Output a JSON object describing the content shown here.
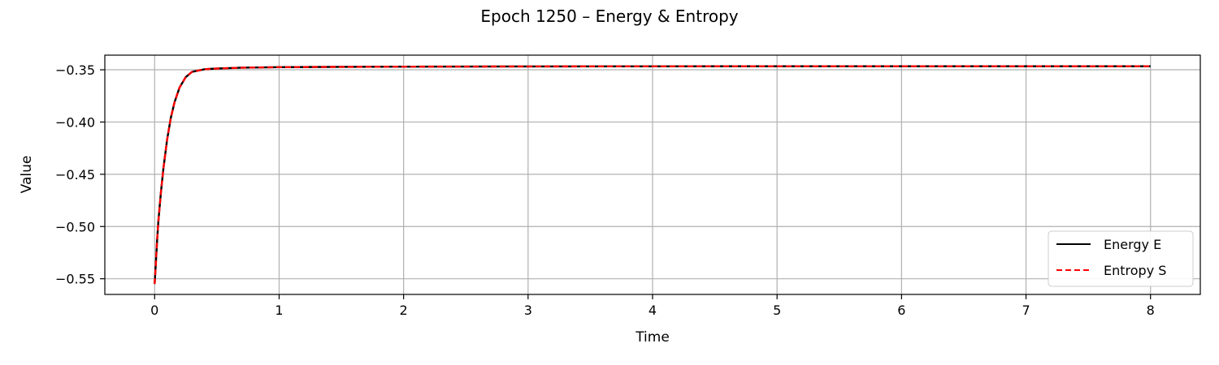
{
  "chart_data": {
    "type": "line",
    "title": "Epoch 1250 – Energy & Entropy",
    "xlabel": "Time",
    "ylabel": "Value",
    "xlim": [
      -0.4,
      8.4
    ],
    "ylim": [
      -0.565,
      -0.336
    ],
    "xticks": [
      0,
      1,
      2,
      3,
      4,
      5,
      6,
      7,
      8
    ],
    "yticks": [
      -0.55,
      -0.5,
      -0.45,
      -0.4,
      -0.35
    ],
    "xtick_labels": [
      "0",
      "1",
      "2",
      "3",
      "4",
      "5",
      "6",
      "7",
      "8"
    ],
    "ytick_labels": [
      "−0.55",
      "−0.50",
      "−0.45",
      "−0.40",
      "−0.35"
    ],
    "grid": true,
    "legend": "lower-right",
    "series": [
      {
        "name": "Energy E",
        "color": "#000000",
        "style": "solid",
        "x": [
          0,
          0.01,
          0.02,
          0.03,
          0.05,
          0.07,
          0.1,
          0.13,
          0.16,
          0.2,
          0.25,
          0.3,
          0.4,
          0.5,
          0.7,
          1.0,
          1.5,
          2.0,
          3.0,
          4.0,
          5.0,
          6.0,
          7.0,
          8.0
        ],
        "values": [
          -0.555,
          -0.535,
          -0.513,
          -0.495,
          -0.468,
          -0.445,
          -0.417,
          -0.396,
          -0.381,
          -0.367,
          -0.357,
          -0.352,
          -0.3495,
          -0.3488,
          -0.348,
          -0.3475,
          -0.3472,
          -0.347,
          -0.3468,
          -0.3467,
          -0.3466,
          -0.3466,
          -0.3466,
          -0.3466
        ]
      },
      {
        "name": "Entropy S",
        "color": "#ff0000",
        "style": "dashed",
        "x": [
          0,
          0.01,
          0.02,
          0.03,
          0.05,
          0.07,
          0.1,
          0.13,
          0.16,
          0.2,
          0.25,
          0.3,
          0.4,
          0.5,
          0.7,
          1.0,
          1.5,
          2.0,
          3.0,
          4.0,
          5.0,
          6.0,
          7.0,
          8.0
        ],
        "values": [
          -0.555,
          -0.535,
          -0.513,
          -0.495,
          -0.468,
          -0.445,
          -0.417,
          -0.396,
          -0.381,
          -0.367,
          -0.357,
          -0.352,
          -0.3495,
          -0.3488,
          -0.348,
          -0.3475,
          -0.3472,
          -0.347,
          -0.3468,
          -0.3467,
          -0.3466,
          -0.3466,
          -0.3466,
          -0.3466
        ]
      }
    ]
  }
}
